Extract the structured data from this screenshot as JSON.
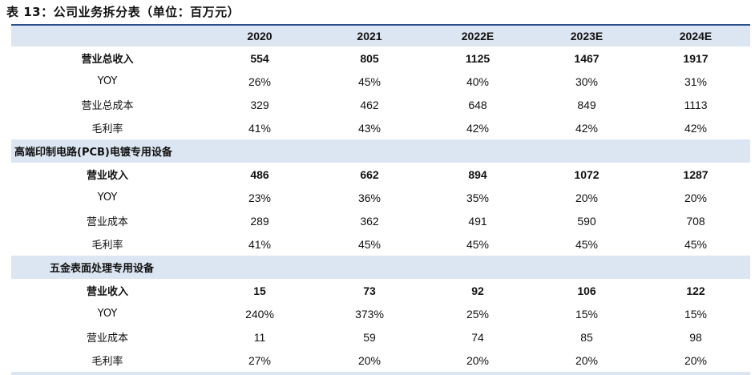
{
  "title": "表 13：公司业务拆分表（单位：百万元）",
  "columns": [
    "",
    "2020",
    "2021",
    "2022E",
    "2023E",
    "2024E"
  ],
  "summary": [
    {
      "label": "营业总收入",
      "values": [
        "554",
        "805",
        "1125",
        "1467",
        "1917"
      ],
      "bold": true
    },
    {
      "label": "YOY",
      "values": [
        "26%",
        "45%",
        "40%",
        "30%",
        "31%"
      ]
    },
    {
      "label": "营业总成本",
      "values": [
        "329",
        "462",
        "648",
        "849",
        "1113"
      ]
    },
    {
      "label": "毛利率",
      "values": [
        "41%",
        "43%",
        "42%",
        "42%",
        "42%"
      ]
    }
  ],
  "section1": {
    "title": "高端印制电路(PCB)电镀专用设备",
    "rows": [
      {
        "label": "营业收入",
        "values": [
          "486",
          "662",
          "894",
          "1072",
          "1287"
        ],
        "bold": true
      },
      {
        "label": "YOY",
        "values": [
          "23%",
          "36%",
          "35%",
          "20%",
          "20%"
        ]
      },
      {
        "label": "营业成本",
        "values": [
          "289",
          "362",
          "491",
          "590",
          "708"
        ]
      },
      {
        "label": "毛利率",
        "values": [
          "41%",
          "45%",
          "45%",
          "45%",
          "45%"
        ]
      }
    ]
  },
  "section2": {
    "title": "五金表面处理专用设备",
    "rows": [
      {
        "label": "营业收入",
        "values": [
          "15",
          "73",
          "92",
          "106",
          "122"
        ],
        "bold": true
      },
      {
        "label": "YOY",
        "values": [
          "240%",
          "373%",
          "25%",
          "15%",
          "15%"
        ]
      },
      {
        "label": "营业成本",
        "values": [
          "11",
          "59",
          "74",
          "85",
          "98"
        ]
      },
      {
        "label": "毛利率",
        "values": [
          "27%",
          "20%",
          "20%",
          "20%",
          "20%"
        ]
      }
    ]
  }
}
